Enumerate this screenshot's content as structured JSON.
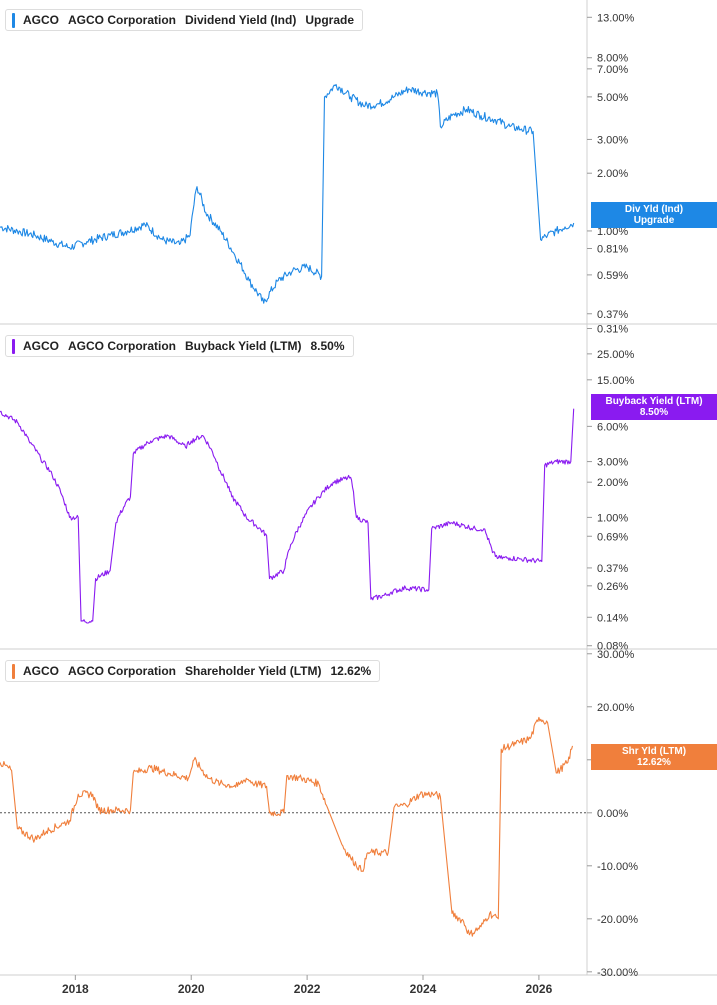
{
  "panels": [
    {
      "legend": {
        "ticker": "AGCO",
        "company": "AGCO Corporation",
        "metric": "Dividend Yield (Ind)",
        "value": "Upgrade"
      },
      "badge": {
        "line1": "Div Yld (Ind)",
        "line2": "Upgrade"
      },
      "color": "#1e88e5"
    },
    {
      "legend": {
        "ticker": "AGCO",
        "company": "AGCO Corporation",
        "metric": "Buyback Yield (LTM)",
        "value": "8.50%"
      },
      "badge": {
        "line1": "Buyback Yield (LTM)",
        "line2": "8.50%"
      },
      "color": "#8a1bf0"
    },
    {
      "legend": {
        "ticker": "AGCO",
        "company": "AGCO Corporation",
        "metric": "Shareholder Yield (LTM)",
        "value": "12.62%"
      },
      "badge": {
        "line1": "Shr Yld (LTM)",
        "line2": "12.62%"
      },
      "color": "#f07f3c"
    }
  ],
  "chart_data": [
    {
      "type": "line",
      "title": "AGCO  AGCO Corporation  Dividend Yield (Ind)",
      "yscale": "log",
      "ylim": [
        0.31,
        16
      ],
      "y_tick_labels": [
        "13.00%",
        "8.00%",
        "7.00%",
        "5.00%",
        "3.00%",
        "2.00%",
        "1.00%",
        "0.81%",
        "0.59%",
        "0.37%",
        "0.31%"
      ],
      "y_tick_values": [
        13,
        8,
        7,
        5,
        3,
        2,
        1,
        0.81,
        0.59,
        0.37,
        0.31
      ],
      "series": [
        {
          "color": "#1e88e5",
          "x": [
            2016.7,
            2017,
            2017.3,
            2017.6,
            2017.9,
            2018.2,
            2018.6,
            2018.9,
            2019.2,
            2019.5,
            2019.8,
            2019.98,
            2020.1,
            2020.25,
            2020.5,
            2020.75,
            2021,
            2021.25,
            2021.5,
            2021.75,
            2022,
            2022.25,
            2022.3,
            2022.5,
            2022.75,
            2023,
            2023.25,
            2023.5,
            2023.75,
            2024,
            2024.25,
            2024.3,
            2024.5,
            2024.75,
            2025,
            2025.25,
            2025.5,
            2025.7,
            2025.9,
            2026.03,
            2026.15,
            2026.3,
            2026.45,
            2026.6
          ],
          "y": [
            1.05,
            1.0,
            0.95,
            0.88,
            0.82,
            0.88,
            0.95,
            1.0,
            1.08,
            0.9,
            0.85,
            0.95,
            1.7,
            1.25,
            1.0,
            0.75,
            0.55,
            0.42,
            0.55,
            0.62,
            0.65,
            0.58,
            5.0,
            5.8,
            5.0,
            4.5,
            4.6,
            5.0,
            5.5,
            5.3,
            5.2,
            3.5,
            4.0,
            4.3,
            4.0,
            3.8,
            3.5,
            3.4,
            3.3,
            0.9,
            0.95,
            1.0,
            1.05,
            1.1
          ]
        }
      ]
    },
    {
      "type": "line",
      "title": "AGCO  AGCO Corporation  Buyback Yield (LTM)",
      "yscale": "log",
      "ylim": [
        0.08,
        40
      ],
      "y_tick_labels": [
        "25.00%",
        "15.00%",
        "6.00%",
        "3.00%",
        "2.00%",
        "1.00%",
        "0.69%",
        "0.37%",
        "0.26%",
        "0.14%",
        "0.08%"
      ],
      "y_tick_values": [
        25,
        15,
        6,
        3,
        2,
        1,
        0.69,
        0.37,
        0.26,
        0.14,
        0.08
      ],
      "series": [
        {
          "color": "#8a1bf0",
          "x": [
            2016.7,
            2017,
            2017.2,
            2017.4,
            2017.6,
            2017.8,
            2017.9,
            2018.05,
            2018.1,
            2018.3,
            2018.35,
            2018.6,
            2018.7,
            2018.95,
            2019.0,
            2019.3,
            2019.6,
            2019.9,
            2020.0,
            2020.2,
            2020.5,
            2020.7,
            2020.95,
            2021.3,
            2021.35,
            2021.6,
            2021.65,
            2021.9,
            2022.2,
            2022.45,
            2022.75,
            2022.85,
            2023.05,
            2023.1,
            2023.4,
            2023.45,
            2023.7,
            2024.1,
            2024.15,
            2024.5,
            2024.9,
            2025.05,
            2025.2,
            2025.3,
            2025.5,
            2025.7,
            2026.05,
            2026.1,
            2026.3,
            2026.55,
            2026.6
          ],
          "y": [
            8.0,
            6.5,
            4.5,
            3.2,
            2.3,
            1.4,
            1.0,
            1.0,
            0.13,
            0.13,
            0.3,
            0.35,
            0.9,
            1.5,
            3.5,
            4.5,
            5.0,
            4.0,
            4.5,
            5.0,
            2.5,
            1.5,
            1.0,
            0.7,
            0.3,
            0.35,
            0.45,
            0.9,
            1.5,
            2.0,
            2.2,
            1.0,
            0.9,
            0.2,
            0.22,
            0.23,
            0.25,
            0.24,
            0.8,
            0.9,
            0.8,
            0.8,
            0.5,
            0.45,
            0.45,
            0.44,
            0.42,
            2.8,
            3.0,
            3.0,
            8.5
          ]
        }
      ]
    },
    {
      "type": "line",
      "title": "AGCO  AGCO Corporation  Shareholder Yield (LTM)",
      "yscale": "linear",
      "ylim": [
        -30,
        30
      ],
      "y_tick_labels": [
        "30.00%",
        "20.00%",
        "10.00%",
        "0.00%",
        "-10.00%",
        "-20.00%",
        "-30.00%"
      ],
      "y_tick_values": [
        30,
        20,
        10,
        0,
        -10,
        -20,
        -30
      ],
      "x_tick_labels": [
        "2018",
        "2020",
        "2022",
        "2024",
        "2026"
      ],
      "x_tick_values": [
        2018,
        2020,
        2022,
        2024,
        2026
      ],
      "series": [
        {
          "color": "#f07f3c",
          "x": [
            2016.7,
            2016.9,
            2017.0,
            2017.3,
            2017.5,
            2017.8,
            2017.9,
            2018.05,
            2018.3,
            2018.4,
            2018.6,
            2018.95,
            2019.0,
            2019.3,
            2019.6,
            2019.95,
            2020.05,
            2020.3,
            2020.5,
            2020.8,
            2020.95,
            2021.1,
            2021.3,
            2021.35,
            2021.6,
            2021.65,
            2021.9,
            2022.2,
            2022.35,
            2022.6,
            2022.75,
            2022.95,
            2023.05,
            2023.4,
            2023.5,
            2023.7,
            2023.95,
            2024.2,
            2024.3,
            2024.5,
            2024.7,
            2024.8,
            2025.0,
            2025.15,
            2025.3,
            2025.35,
            2025.6,
            2025.85,
            2026.0,
            2026.15,
            2026.3,
            2026.5,
            2026.58
          ],
          "y": [
            9.5,
            8.0,
            -3.0,
            -5.0,
            -3.5,
            -2.0,
            -1.5,
            3.5,
            3.5,
            0.5,
            0.5,
            0.5,
            7.5,
            8.5,
            7.5,
            6.5,
            10.0,
            6.5,
            5.5,
            5.0,
            6.5,
            5.5,
            5.0,
            0.0,
            0.0,
            7.0,
            6.5,
            5.5,
            1.0,
            -6.0,
            -8.5,
            -11.0,
            -7.5,
            -7.5,
            1.0,
            1.5,
            3.5,
            3.5,
            3.0,
            -19.0,
            -20.5,
            -23.0,
            -21.5,
            -19.0,
            -20.0,
            12.0,
            13.0,
            14.0,
            18.0,
            17.0,
            7.5,
            9.5,
            12.62
          ]
        }
      ]
    }
  ]
}
